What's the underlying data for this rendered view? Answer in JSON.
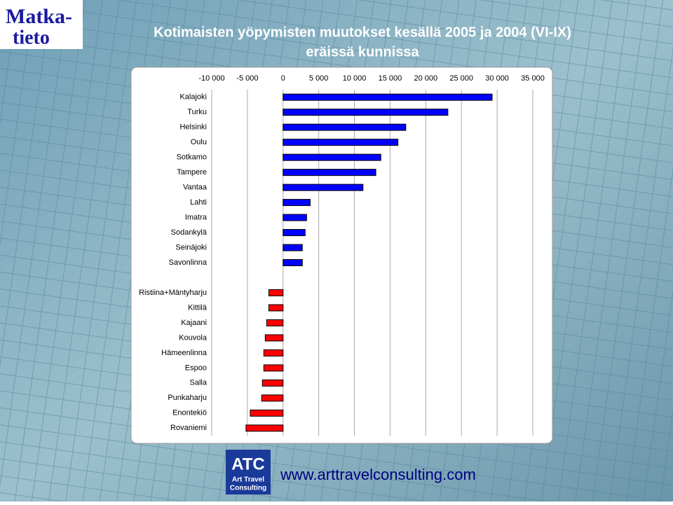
{
  "logo": {
    "line1": "Matka-",
    "line2": "tieto"
  },
  "footer": {
    "badge": "ATC",
    "badge_line1": "Art Travel",
    "badge_line2": "Consulting",
    "url": "www.arttravelconsulting.com"
  },
  "chart_data": {
    "type": "hbar",
    "title": "Kotimaisten yöpymisten muutokset kesällä 2005 ja 2004 (VI-IX)",
    "subtitle": "eräissä kunnissa",
    "categories": [
      "Kalajoki",
      "Turku",
      "Helsinki",
      "Oulu",
      "Sotkamo",
      "Tampere",
      "Vantaa",
      "Lahti",
      "Imatra",
      "Sodankylä",
      "Seinäjoki",
      "Savonlinna",
      null,
      "Ristiina+Mäntyharju",
      "Kittilä",
      "Kajaani",
      "Kouvola",
      "Hämeenlinna",
      "Espoo",
      "Salla",
      "Punkaharju",
      "Enontekiö",
      "Rovaniemi"
    ],
    "values": [
      29300,
      23100,
      17200,
      16100,
      13700,
      13000,
      11200,
      3800,
      3300,
      3100,
      2700,
      2700,
      null,
      -2000,
      -2000,
      -2300,
      -2500,
      -2700,
      -2700,
      -2900,
      -3000,
      -4600,
      -5200
    ],
    "color_positive": "#0000ff",
    "color_negative": "#ff0000",
    "xlim": [
      -10000,
      35000
    ],
    "xticks": [
      {
        "value": -10000,
        "label": "-10 000"
      },
      {
        "value": -5000,
        "label": "-5 000"
      },
      0,
      {
        "value": 5000,
        "label": "5 000"
      },
      {
        "value": 10000,
        "label": "10 000"
      },
      {
        "value": 15000,
        "label": "15 000"
      },
      {
        "value": 20000,
        "label": "20 000"
      },
      {
        "value": 25000,
        "label": "25 000"
      },
      {
        "value": 30000,
        "label": "30 000"
      },
      {
        "value": 35000,
        "label": "35 000"
      }
    ],
    "grid": true
  }
}
